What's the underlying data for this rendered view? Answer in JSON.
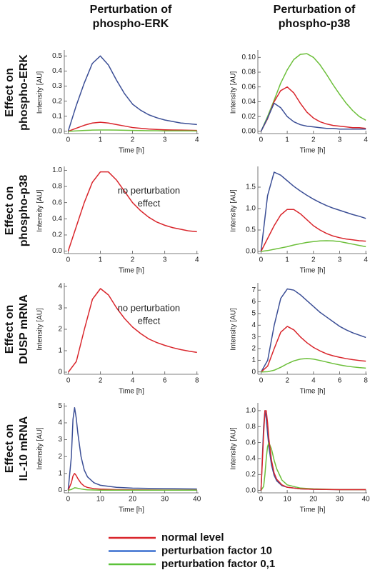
{
  "column_headers": [
    [
      "Perturbation of",
      "phospho-ERK"
    ],
    [
      "Perturbation of",
      "phospho-p38"
    ]
  ],
  "row_labels": [
    [
      "Effect on",
      "phospho-ERK"
    ],
    [
      "Effect on",
      "phospho-p38"
    ],
    [
      "Effect on",
      "DUSP mRNA"
    ],
    [
      "Effect on",
      "IL-10 mRNA"
    ]
  ],
  "legend": [
    {
      "name": "normal level",
      "color": "#d9262c"
    },
    {
      "name": "perturbation factor 10",
      "color": "#3a6fcf"
    },
    {
      "name": "perturbation factor 0,1",
      "color": "#5cc23a"
    }
  ],
  "chart_data": [
    {
      "type": "line",
      "xlabel": "Time [h]",
      "ylabel": "Intensity [AU]",
      "x": [
        0,
        0.25,
        0.5,
        0.75,
        1,
        1.25,
        1.5,
        1.75,
        2,
        2.25,
        2.5,
        2.75,
        3,
        3.25,
        3.5,
        3.75,
        4
      ],
      "series": [
        {
          "color": "#3c4f96",
          "values": [
            0,
            0.17,
            0.32,
            0.45,
            0.5,
            0.44,
            0.34,
            0.25,
            0.18,
            0.14,
            0.11,
            0.09,
            0.075,
            0.065,
            0.055,
            0.05,
            0.045
          ]
        },
        {
          "color": "#d9262c",
          "values": [
            0,
            0.02,
            0.04,
            0.055,
            0.06,
            0.055,
            0.045,
            0.035,
            0.025,
            0.02,
            0.015,
            0.012,
            0.01,
            0.009,
            0.008,
            0.007,
            0.006
          ]
        },
        {
          "color": "#6cbf3a",
          "values": [
            0,
            0.003,
            0.006,
            0.008,
            0.009,
            0.009,
            0.008,
            0.007,
            0.006,
            0.005,
            0.004,
            0.004,
            0.003,
            0.003,
            0.003,
            0.003,
            0.002
          ]
        }
      ],
      "xlim": [
        -0.12,
        4.05
      ],
      "xticks": [
        0,
        1,
        2,
        3,
        4
      ],
      "ylim": [
        -0.015,
        0.53
      ],
      "yticks": [
        {
          "value": 0,
          "label": "0.0"
        },
        0.1,
        0.2,
        0.3,
        0.4,
        0.5
      ]
    },
    {
      "type": "line",
      "xlabel": "Time [h]",
      "ylabel": "Intensity [AU]",
      "x": [
        0,
        0.25,
        0.5,
        0.75,
        1,
        1.25,
        1.5,
        1.75,
        2,
        2.25,
        2.5,
        2.75,
        3,
        3.25,
        3.5,
        3.75,
        4
      ],
      "series": [
        {
          "color": "#6cbf3a",
          "values": [
            0,
            0.02,
            0.042,
            0.065,
            0.083,
            0.097,
            0.104,
            0.105,
            0.1,
            0.09,
            0.077,
            0.063,
            0.05,
            0.038,
            0.028,
            0.02,
            0.015
          ]
        },
        {
          "color": "#d9262c",
          "values": [
            0,
            0.017,
            0.04,
            0.055,
            0.06,
            0.052,
            0.038,
            0.026,
            0.018,
            0.013,
            0.01,
            0.008,
            0.007,
            0.006,
            0.005,
            0.005,
            0.004
          ]
        },
        {
          "color": "#3c4f96",
          "values": [
            0,
            0.018,
            0.038,
            0.032,
            0.02,
            0.013,
            0.009,
            0.007,
            0.006,
            0.005,
            0.004,
            0.004,
            0.003,
            0.003,
            0.003,
            0.003,
            0.003
          ]
        }
      ],
      "xlim": [
        -0.12,
        4.05
      ],
      "xticks": [
        0,
        1,
        2,
        3,
        4
      ],
      "ylim": [
        -0.003,
        0.108
      ],
      "yticks": [
        {
          "value": 0,
          "label": "0.00"
        },
        0.02,
        0.04,
        0.06,
        0.08,
        {
          "value": 0.1,
          "label": "0.10"
        }
      ]
    },
    {
      "type": "line",
      "xlabel": "Time [h]",
      "ylabel": "Intensity [AU]",
      "annotation": [
        "no perturbation",
        "effect"
      ],
      "x": [
        0,
        0.25,
        0.5,
        0.75,
        1,
        1.25,
        1.5,
        1.75,
        2,
        2.25,
        2.5,
        2.75,
        3,
        3.25,
        3.5,
        3.75,
        4
      ],
      "series": [
        {
          "color": "#d9262c",
          "values": [
            0,
            0.3,
            0.6,
            0.85,
            0.98,
            0.98,
            0.88,
            0.74,
            0.6,
            0.5,
            0.42,
            0.36,
            0.32,
            0.29,
            0.27,
            0.25,
            0.24
          ]
        }
      ],
      "xlim": [
        -0.12,
        4.05
      ],
      "xticks": [
        0,
        1,
        2,
        3,
        4
      ],
      "ylim": [
        -0.03,
        1.03
      ],
      "yticks": [
        {
          "value": 0,
          "label": "0.0"
        },
        0.2,
        0.4,
        0.6,
        0.8,
        {
          "value": 1,
          "label": "1.0"
        }
      ]
    },
    {
      "type": "line",
      "xlabel": "Time [h]",
      "ylabel": "Intensity [AU]",
      "x": [
        0,
        0.25,
        0.5,
        0.75,
        1,
        1.25,
        1.5,
        1.75,
        2,
        2.25,
        2.5,
        2.75,
        3,
        3.25,
        3.5,
        3.75,
        4
      ],
      "series": [
        {
          "color": "#3c4f96",
          "values": [
            0,
            1.3,
            1.85,
            1.78,
            1.65,
            1.52,
            1.41,
            1.31,
            1.22,
            1.14,
            1.07,
            1.01,
            0.96,
            0.91,
            0.86,
            0.82,
            0.77
          ]
        },
        {
          "color": "#d9262c",
          "values": [
            0,
            0.3,
            0.6,
            0.85,
            0.98,
            0.98,
            0.88,
            0.74,
            0.6,
            0.5,
            0.42,
            0.36,
            0.32,
            0.29,
            0.27,
            0.25,
            0.24
          ]
        },
        {
          "color": "#6cbf3a",
          "values": [
            0,
            0.02,
            0.05,
            0.08,
            0.11,
            0.15,
            0.18,
            0.21,
            0.23,
            0.245,
            0.25,
            0.245,
            0.23,
            0.2,
            0.17,
            0.14,
            0.11
          ]
        }
      ],
      "xlim": [
        -0.12,
        4.05
      ],
      "xticks": [
        0,
        1,
        2,
        3,
        4
      ],
      "ylim": [
        -0.05,
        1.95
      ],
      "yticks": [
        {
          "value": 0,
          "label": "0.0"
        },
        0.5,
        {
          "value": 1,
          "label": "1.0"
        },
        1.5
      ]
    },
    {
      "type": "line",
      "xlabel": "Time [h]",
      "ylabel": "Intensity [AU]",
      "annotation": [
        "no perturbation",
        "effect"
      ],
      "x": [
        0,
        0.5,
        1,
        1.5,
        2,
        2.5,
        3,
        3.5,
        4,
        4.5,
        5,
        5.5,
        6,
        6.5,
        7,
        7.5,
        8
      ],
      "series": [
        {
          "color": "#d9262c",
          "values": [
            0,
            0.5,
            2,
            3.4,
            3.9,
            3.6,
            3,
            2.5,
            2.1,
            1.8,
            1.55,
            1.38,
            1.25,
            1.14,
            1.05,
            0.98,
            0.92
          ]
        }
      ],
      "xlim": [
        -0.25,
        8.1
      ],
      "xticks": [
        0,
        2,
        4,
        6,
        8
      ],
      "ylim": [
        -0.1,
        4.1
      ],
      "yticks": [
        0,
        1,
        2,
        3,
        4
      ]
    },
    {
      "type": "line",
      "xlabel": "Time [h]",
      "ylabel": "Intensity [AU]",
      "x": [
        0,
        0.5,
        1,
        1.5,
        2,
        2.5,
        3,
        3.5,
        4,
        4.5,
        5,
        5.5,
        6,
        6.5,
        7,
        7.5,
        8
      ],
      "series": [
        {
          "color": "#3c4f96",
          "values": [
            0,
            1,
            4,
            6.3,
            7.1,
            7,
            6.6,
            6.1,
            5.6,
            5.1,
            4.7,
            4.3,
            3.9,
            3.6,
            3.35,
            3.15,
            2.95
          ]
        },
        {
          "color": "#d9262c",
          "values": [
            0,
            0.5,
            2,
            3.4,
            3.9,
            3.6,
            3,
            2.5,
            2.1,
            1.8,
            1.55,
            1.38,
            1.25,
            1.14,
            1.05,
            0.98,
            0.92
          ]
        },
        {
          "color": "#6cbf3a",
          "values": [
            0,
            0.02,
            0.15,
            0.4,
            0.7,
            0.95,
            1.1,
            1.15,
            1.1,
            0.98,
            0.85,
            0.72,
            0.6,
            0.5,
            0.43,
            0.37,
            0.33
          ]
        }
      ],
      "xlim": [
        -0.25,
        8.1
      ],
      "xticks": [
        0,
        2,
        4,
        6,
        8
      ],
      "ylim": [
        -0.2,
        7.5
      ],
      "yticks": [
        0,
        1,
        2,
        3,
        4,
        5,
        6,
        7
      ]
    },
    {
      "type": "line",
      "xlabel": "Time [h]",
      "ylabel": "Intensity [AU]",
      "x": [
        0,
        1,
        1.5,
        2,
        2.5,
        3,
        4,
        5,
        6,
        8,
        10,
        15,
        20,
        30,
        40
      ],
      "series": [
        {
          "color": "#3c4f96",
          "values": [
            0,
            2,
            4.2,
            4.9,
            4.3,
            3.4,
            2,
            1.2,
            0.8,
            0.45,
            0.3,
            0.18,
            0.13,
            0.1,
            0.08
          ]
        },
        {
          "color": "#d9262c",
          "values": [
            0,
            0.45,
            0.85,
            1,
            0.88,
            0.7,
            0.42,
            0.25,
            0.17,
            0.1,
            0.07,
            0.04,
            0.03,
            0.02,
            0.02
          ]
        },
        {
          "color": "#6cbf3a",
          "values": [
            0,
            0.05,
            0.1,
            0.15,
            0.14,
            0.12,
            0.08,
            0.05,
            0.03,
            0.02,
            0.01,
            0.01,
            0.01,
            0.01,
            0.01
          ]
        }
      ],
      "xlim": [
        -1.2,
        40.5
      ],
      "xticks": [
        0,
        10,
        20,
        30,
        40
      ],
      "ylim": [
        -0.15,
        5.1
      ],
      "yticks": [
        0,
        1,
        2,
        3,
        4,
        5
      ]
    },
    {
      "type": "line",
      "xlabel": "Time [h]",
      "ylabel": "Intensity [AU]",
      "x": [
        0,
        1,
        1.5,
        2,
        2.5,
        3,
        4,
        5,
        6,
        8,
        10,
        15,
        20,
        30,
        40
      ],
      "series": [
        {
          "color": "#3c4f96",
          "values": [
            0,
            0.8,
            1,
            0.9,
            0.72,
            0.55,
            0.32,
            0.19,
            0.12,
            0.06,
            0.04,
            0.02,
            0.015,
            0.01,
            0.01
          ]
        },
        {
          "color": "#6cbf3a",
          "values": [
            0,
            0.05,
            0.2,
            0.4,
            0.55,
            0.6,
            0.52,
            0.38,
            0.27,
            0.13,
            0.07,
            0.03,
            0.02,
            0.01,
            0.01
          ]
        },
        {
          "color": "#d9262c",
          "values": [
            0,
            0.7,
            1,
            1,
            0.85,
            0.65,
            0.38,
            0.22,
            0.14,
            0.07,
            0.04,
            0.02,
            0.015,
            0.01,
            0.01
          ]
        }
      ],
      "xlim": [
        -1.2,
        40.5
      ],
      "xticks": [
        0,
        10,
        20,
        30,
        40
      ],
      "ylim": [
        -0.03,
        1.08
      ],
      "yticks": [
        {
          "value": 0,
          "label": "0.0"
        },
        0.2,
        0.4,
        0.6,
        0.8,
        {
          "value": 1,
          "label": "1.0"
        }
      ]
    }
  ]
}
